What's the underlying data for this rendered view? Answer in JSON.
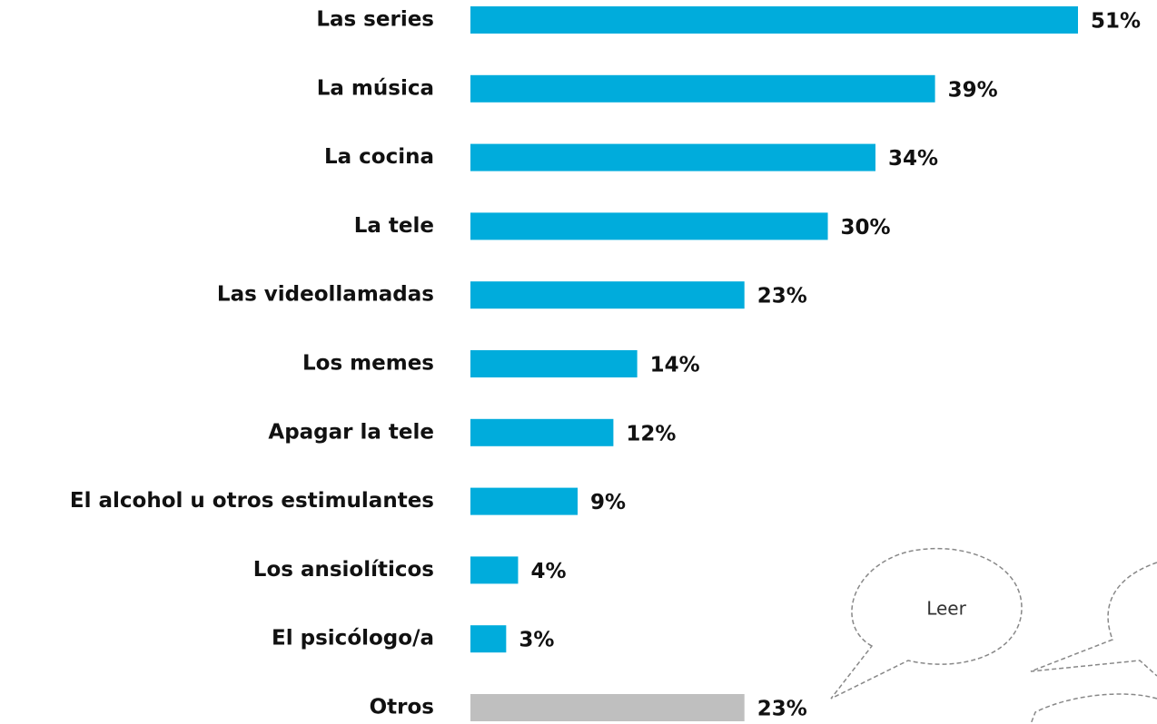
{
  "chart_data": {
    "type": "hbar",
    "categories": [
      "Las series",
      "La música",
      "La cocina",
      "La tele",
      "Las videollamadas",
      "Los memes",
      "Apagar la tele",
      "El alcohol u otros estimulantes",
      "Los ansiolíticos",
      "El psicólogo/a",
      "Otros"
    ],
    "values": [
      51,
      39,
      34,
      30,
      23,
      14,
      12,
      9,
      4,
      3,
      23
    ],
    "value_labels": [
      "51%",
      "39%",
      "34%",
      "30%",
      "23%",
      "14%",
      "12%",
      "9%",
      "4%",
      "3%",
      "23%"
    ],
    "colors": [
      "#00acdc",
      "#00acdc",
      "#00acdc",
      "#00acdc",
      "#00acdc",
      "#00acdc",
      "#00acdc",
      "#00acdc",
      "#00acdc",
      "#00acdc",
      "#bfbfbf"
    ],
    "annotation": "Leer"
  }
}
